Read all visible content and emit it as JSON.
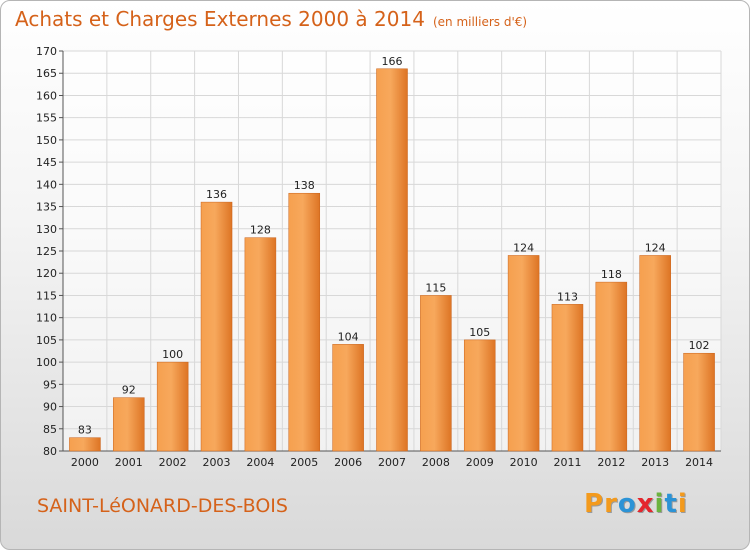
{
  "header": {
    "title": "Achats et Charges Externes 2000 à 2014",
    "subtitle": "(en milliers d'€)"
  },
  "footer": {
    "place": "SAINT-LéONARD-DES-BOIS",
    "logo_text": "Proxiti",
    "logo_letters": [
      {
        "char": "P",
        "color": "#f39a1d"
      },
      {
        "char": "r",
        "color": "#f39a1d"
      },
      {
        "char": "o",
        "color": "#2b93d6"
      },
      {
        "char": "x",
        "color": "#e4262d"
      },
      {
        "char": "i",
        "color": "#6cb33f"
      },
      {
        "char": "t",
        "color": "#2b93d6"
      },
      {
        "char": "i",
        "color": "#f39a1d"
      }
    ]
  },
  "colors": {
    "accent": "#d5621a",
    "bar_light": "#f8a65a",
    "bar_dark": "#d96f1d",
    "grid": "#d8d8d8",
    "axis_text": "#222222"
  },
  "chart_data": {
    "type": "bar",
    "title": "Achats et Charges Externes 2000 à 2014",
    "subtitle": "(en milliers d'€)",
    "categories": [
      "2000",
      "2001",
      "2002",
      "2003",
      "2004",
      "2005",
      "2006",
      "2007",
      "2008",
      "2009",
      "2010",
      "2011",
      "2012",
      "2013",
      "2014"
    ],
    "values": [
      83,
      92,
      100,
      136,
      128,
      138,
      104,
      166,
      115,
      105,
      124,
      113,
      118,
      124,
      102
    ],
    "data_labels": [
      "83",
      "92",
      "100",
      "136",
      "128",
      "138",
      "104",
      "166",
      "115",
      "105",
      "124",
      "113",
      "118",
      "124",
      "102"
    ],
    "ylim": [
      80,
      170
    ],
    "yticks": [
      80,
      85,
      90,
      95,
      100,
      105,
      110,
      115,
      120,
      125,
      130,
      135,
      140,
      145,
      150,
      155,
      160,
      165,
      170
    ],
    "xlabel": "",
    "ylabel": "",
    "grid": true,
    "legend": "none"
  }
}
